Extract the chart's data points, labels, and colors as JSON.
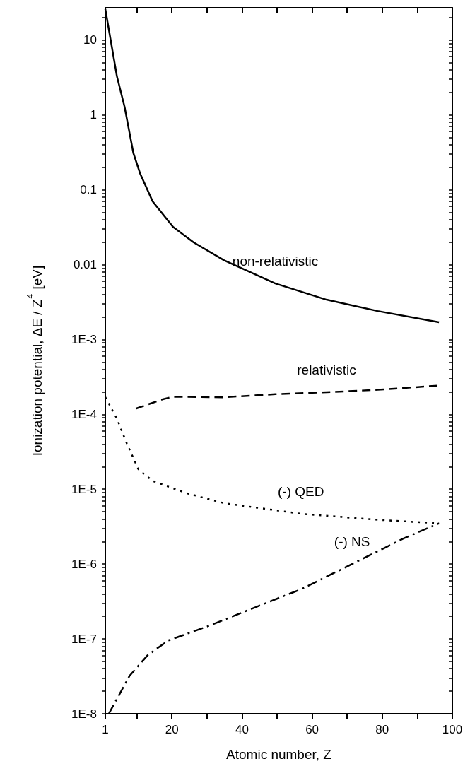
{
  "chart_data": {
    "type": "line",
    "xlabel": "Atomic number, Z",
    "ylabel": "Ionization potential, ΔE / Z$^{4}$ [eV]",
    "log": "y",
    "grid": false,
    "legend": false,
    "marker": "none",
    "xlim": [
      1,
      100
    ],
    "xticks": [
      1,
      {
        "value": 10,
        "label": null
      },
      20,
      {
        "value": 30,
        "label": null
      },
      40,
      {
        "value": 50,
        "label": null
      },
      60,
      {
        "value": 70,
        "label": null
      },
      80,
      {
        "value": 90,
        "label": null
      },
      100
    ],
    "ylim": [
      1e-08,
      27
    ],
    "yticks": [
      {
        "value": 1e-08,
        "label": "1E-8"
      },
      {
        "value": 2e-08,
        "label": null
      },
      {
        "value": 3e-08,
        "label": null
      },
      {
        "value": 4e-08,
        "label": null
      },
      {
        "value": 5e-08,
        "label": null
      },
      {
        "value": 6e-08,
        "label": null
      },
      {
        "value": 7e-08,
        "label": null
      },
      {
        "value": 8e-08,
        "label": null
      },
      {
        "value": 9e-08,
        "label": null
      },
      {
        "value": 1e-07,
        "label": "1E-7"
      },
      {
        "value": 2e-07,
        "label": null
      },
      {
        "value": 3e-07,
        "label": null
      },
      {
        "value": 4e-07,
        "label": null
      },
      {
        "value": 5e-07,
        "label": null
      },
      {
        "value": 6e-07,
        "label": null
      },
      {
        "value": 7e-07,
        "label": null
      },
      {
        "value": 8e-07,
        "label": null
      },
      {
        "value": 9e-07,
        "label": null
      },
      {
        "value": 1e-06,
        "label": "1E-6"
      },
      {
        "value": 2e-06,
        "label": null
      },
      {
        "value": 3e-06,
        "label": null
      },
      {
        "value": 4e-06,
        "label": null
      },
      {
        "value": 5e-06,
        "label": null
      },
      {
        "value": 6e-06,
        "label": null
      },
      {
        "value": 7e-06,
        "label": null
      },
      {
        "value": 8e-06,
        "label": null
      },
      {
        "value": 9e-06,
        "label": null
      },
      {
        "value": 1e-05,
        "label": "1E-5"
      },
      {
        "value": 2e-05,
        "label": null
      },
      {
        "value": 3e-05,
        "label": null
      },
      {
        "value": 4e-05,
        "label": null
      },
      {
        "value": 5e-05,
        "label": null
      },
      {
        "value": 6e-05,
        "label": null
      },
      {
        "value": 7e-05,
        "label": null
      },
      {
        "value": 8e-05,
        "label": null
      },
      {
        "value": 9e-05,
        "label": null
      },
      {
        "value": 0.0001,
        "label": "1E-4"
      },
      {
        "value": 0.0002,
        "label": null
      },
      {
        "value": 0.0003,
        "label": null
      },
      {
        "value": 0.0004,
        "label": null
      },
      {
        "value": 0.0005,
        "label": null
      },
      {
        "value": 0.0006,
        "label": null
      },
      {
        "value": 0.0007,
        "label": null
      },
      {
        "value": 0.0008,
        "label": null
      },
      {
        "value": 0.0009,
        "label": null
      },
      {
        "value": 0.001,
        "label": "1E-3"
      },
      {
        "value": 0.002,
        "label": null
      },
      {
        "value": 0.003,
        "label": null
      },
      {
        "value": 0.004,
        "label": null
      },
      {
        "value": 0.005,
        "label": null
      },
      {
        "value": 0.006,
        "label": null
      },
      {
        "value": 0.007,
        "label": null
      },
      {
        "value": 0.008,
        "label": null
      },
      {
        "value": 0.009,
        "label": null
      },
      0.01,
      {
        "value": 0.02,
        "label": null
      },
      {
        "value": 0.03,
        "label": null
      },
      {
        "value": 0.04,
        "label": null
      },
      {
        "value": 0.05,
        "label": null
      },
      {
        "value": 0.06,
        "label": null
      },
      {
        "value": 0.07,
        "label": null
      },
      {
        "value": 0.08,
        "label": null
      },
      {
        "value": 0.09,
        "label": null
      },
      0.1,
      {
        "value": 0.2,
        "label": null
      },
      {
        "value": 0.3,
        "label": null
      },
      {
        "value": 0.4,
        "label": null
      },
      {
        "value": 0.5,
        "label": null
      },
      {
        "value": 0.6,
        "label": null
      },
      {
        "value": 0.7,
        "label": null
      },
      {
        "value": 0.8,
        "label": null
      },
      {
        "value": 0.9,
        "label": null
      },
      1,
      {
        "value": 2,
        "label": null
      },
      {
        "value": 3,
        "label": null
      },
      {
        "value": 4,
        "label": null
      },
      {
        "value": 5,
        "label": null
      },
      {
        "value": 6,
        "label": null
      },
      {
        "value": 7,
        "label": null
      },
      {
        "value": 8,
        "label": null
      },
      {
        "value": 9,
        "label": null
      },
      10,
      {
        "value": 20,
        "label": null
      }
    ],
    "series": [
      {
        "name": "non-relativistic",
        "color": "#000000",
        "line_style": "solid",
        "x": [
          1,
          4.3,
          6.5,
          9,
          10.9,
          14.5,
          20.3,
          26.2,
          34.9,
          49.5,
          64.1,
          78.7,
          96.2
        ],
        "values": [
          26,
          3.3,
          1.28,
          0.31,
          0.166,
          0.07,
          0.032,
          0.0198,
          0.0114,
          0.0056,
          0.0034,
          0.0024,
          0.0017
        ]
      },
      {
        "name": "relativistic",
        "color": "#000000",
        "line_style": "dashed",
        "x": [
          9.7,
          17.4,
          20.3,
          34.9,
          49.5,
          64.1,
          78.7,
          96.2
        ],
        "values": [
          0.000119,
          0.000159,
          0.000172,
          0.000169,
          0.000186,
          0.000197,
          0.000213,
          0.000242
        ]
      },
      {
        "name": "(-) QED",
        "color": "#000000",
        "line_style": "dotted",
        "x": [
          1,
          4.3,
          7.2,
          10.5,
          14.5,
          24,
          34.9,
          56.8,
          78.7,
          96.2
        ],
        "values": [
          0.00017,
          8.8e-05,
          4e-05,
          1.83e-05,
          1.29e-05,
          8.9e-06,
          6.5e-06,
          4.7e-06,
          3.9e-06,
          3.5e-06
        ]
      },
      {
        "name": "(-) NS",
        "color": "#000000",
        "line_style": "dashdot",
        "x": [
          2,
          7.9,
          13,
          18.9,
          31.3,
          42.2,
          56.8,
          71.4,
          86,
          96.2
        ],
        "values": [
          1e-08,
          3.2e-08,
          6e-08,
          9.5e-08,
          1.54e-07,
          2.47e-07,
          4.6e-07,
          1e-06,
          2.19e-06,
          3.5e-06
        ]
      }
    ]
  }
}
